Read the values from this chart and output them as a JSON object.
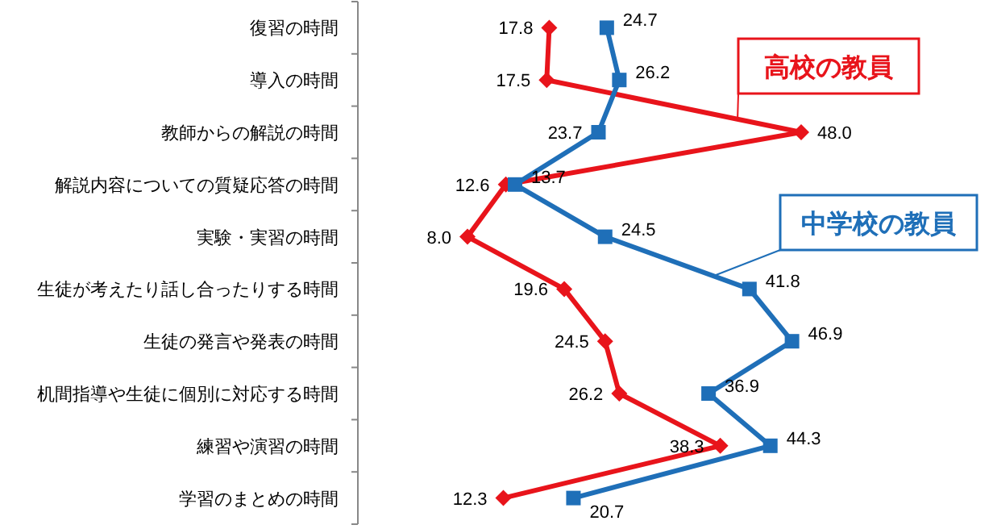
{
  "chart_data": {
    "type": "line",
    "orientation": "horizontal",
    "categories": [
      "復習の時間",
      "導入の時間",
      "教師からの解説の時間",
      "解説内容についての質疑応答の時間",
      "実験・実習の時間",
      "生徒が考えたり話し合ったりする時間",
      "生徒の発言や発表の時間",
      "机間指導や生徒に個別に対応する時間",
      "練習や演習の時間",
      "学習のまとめの時間"
    ],
    "series": [
      {
        "name": "高校の教員",
        "color": "#e8141b",
        "marker": "diamond",
        "values": [
          17.8,
          17.5,
          48.0,
          12.6,
          8.0,
          19.6,
          24.5,
          26.2,
          38.3,
          12.3
        ],
        "value_labels": [
          "17.8",
          "17.5",
          "48.0",
          "12.6",
          "8.0",
          "19.6",
          "24.5",
          "26.2",
          "38.3",
          "12.3"
        ]
      },
      {
        "name": "中学校の教員",
        "color": "#1f6fb8",
        "marker": "square",
        "values": [
          24.7,
          26.2,
          23.7,
          13.7,
          24.5,
          41.8,
          46.9,
          36.9,
          44.3,
          20.7
        ],
        "value_labels": [
          "24.7",
          "26.2",
          "23.7",
          "13.7",
          "24.5",
          "41.8",
          "46.9",
          "36.9",
          "44.3",
          "20.7"
        ]
      }
    ]
  }
}
